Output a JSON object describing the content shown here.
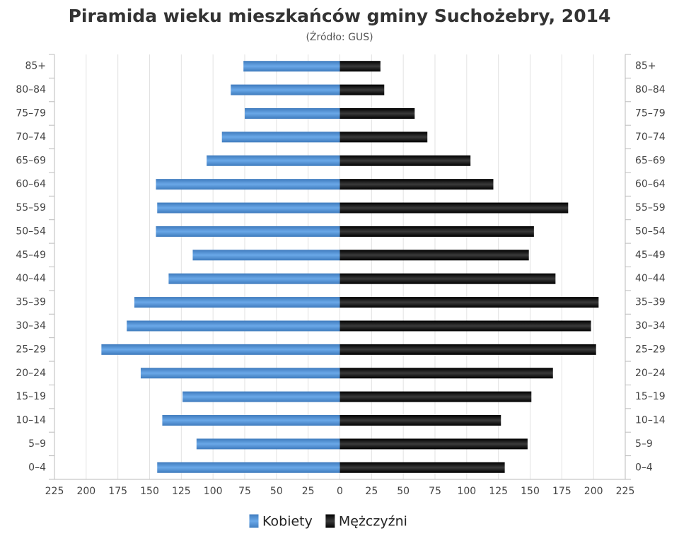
{
  "chart_data": {
    "type": "pyramid",
    "title": "Piramida wieku mieszkańców gminy Suchożebry, 2014",
    "subtitle": "(Źródło: GUS)",
    "categories": [
      "0–4",
      "5–9",
      "10–14",
      "15–19",
      "20–24",
      "25–29",
      "30–34",
      "35–39",
      "40–44",
      "45–49",
      "50–54",
      "55–59",
      "60–64",
      "65–69",
      "70–74",
      "75–79",
      "80–84",
      "85+"
    ],
    "series": [
      {
        "name": "Kobiety",
        "color": "#4a8bd0",
        "values": [
          -144,
          -113,
          -140,
          -124,
          -157,
          -188,
          -168,
          -162,
          -135,
          -116,
          -145,
          -144,
          -145,
          -105,
          -93,
          -75,
          -86,
          -76
        ]
      },
      {
        "name": "Mężczyźni",
        "color": "#1a1a1a",
        "values": [
          130,
          148,
          127,
          151,
          168,
          202,
          198,
          204,
          170,
          149,
          153,
          180,
          121,
          103,
          69,
          59,
          35,
          32
        ]
      }
    ],
    "xlim": [
      -225,
      225
    ],
    "xticks": [
      {
        "value": -225,
        "label": "225"
      },
      {
        "value": -200,
        "label": "200"
      },
      {
        "value": -175,
        "label": "175"
      },
      {
        "value": -150,
        "label": "150"
      },
      {
        "value": -125,
        "label": "125"
      },
      {
        "value": -100,
        "label": "100"
      },
      {
        "value": -75,
        "label": "75"
      },
      {
        "value": -50,
        "label": "50"
      },
      {
        "value": -25,
        "label": "25"
      },
      0,
      25,
      50,
      75,
      100,
      125,
      150,
      175,
      200,
      225
    ],
    "grid": true
  }
}
